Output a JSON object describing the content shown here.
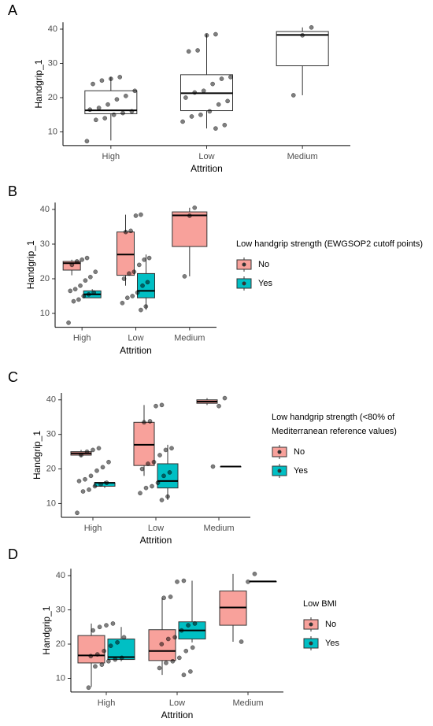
{
  "chart_data": [
    {
      "type": "box",
      "label": "A",
      "x_label": "Attrition",
      "y_label": "Handgrip_1",
      "categories": [
        "High",
        "Low",
        "Medium"
      ],
      "ylim": [
        6,
        42
      ],
      "yticks": [
        10,
        20,
        30,
        40
      ],
      "series": [
        {
          "color": "#ffffff",
          "boxes": [
            [
              7.5,
              15.3,
              16.3,
              22,
              26
            ],
            [
              11,
              16.2,
              21.3,
              26.7,
              38.5
            ],
            [
              20.7,
              29.3,
              38.3,
              39.3,
              40.5
            ]
          ]
        }
      ],
      "points": [
        [
          7.3,
          13.5,
          14,
          15,
          15.5,
          16,
          16.5,
          17,
          18,
          19.5,
          20.5,
          22,
          24,
          25,
          25.5,
          26
        ],
        [
          11,
          12,
          13,
          14.5,
          15,
          16,
          18,
          19,
          20,
          21.5,
          22,
          24,
          25.5,
          26,
          33.5,
          33.8,
          38.2,
          38.5
        ],
        [
          20.7,
          38.2,
          40.5
        ]
      ]
    },
    {
      "type": "box",
      "label": "B",
      "x_label": "Attrition",
      "y_label": "Handgrip_1",
      "categories": [
        "High",
        "Low",
        "Medium"
      ],
      "ylim": [
        6,
        42
      ],
      "yticks": [
        10,
        20,
        30,
        40
      ],
      "legend_title": [
        "Low handgrip strength (EWGSOP2 cutoff points)"
      ],
      "series": [
        {
          "name": "No",
          "color": "#f8a19b",
          "boxes": [
            [
              21,
              22.5,
              24.5,
              25,
              25.5
            ],
            [
              18,
              21,
              27,
              33.5,
              38.5
            ],
            [
              20.7,
              29.3,
              38.3,
              39.3,
              40.5
            ]
          ]
        },
        {
          "name": "Yes",
          "color": "#00bfc4",
          "boxes": [
            [
              14.5,
              14.5,
              15.5,
              16.5,
              17
            ],
            [
              11,
              14.5,
              16.5,
              21.5,
              27
            ],
            null
          ]
        }
      ],
      "points": [
        [
          7.3,
          13.5,
          14,
          15,
          15.5,
          16,
          16.5,
          17,
          18,
          19.5,
          20.5,
          22,
          24,
          25,
          25.5,
          26
        ],
        [
          11,
          12,
          13,
          14.5,
          15,
          16,
          18,
          19,
          20,
          21.5,
          22,
          24,
          25.5,
          26,
          33.5,
          33.8,
          38.2,
          38.5
        ],
        [
          20.7,
          38.2,
          40.5
        ]
      ]
    },
    {
      "type": "box",
      "label": "C",
      "x_label": "Attrition",
      "y_label": "Handgrip_1",
      "categories": [
        "High",
        "Low",
        "Medium"
      ],
      "ylim": [
        6,
        42
      ],
      "yticks": [
        10,
        20,
        30,
        40
      ],
      "legend_title": [
        "Low handgrip strength (<80% of",
        "Mediterranean reference values)"
      ],
      "series": [
        {
          "name": "No",
          "color": "#f8a19b",
          "boxes": [
            [
              23.5,
              24,
              24.5,
              25,
              25.5
            ],
            [
              18,
              21,
              27,
              33.5,
              38.5
            ],
            [
              38.5,
              39,
              39.5,
              40,
              40.5
            ]
          ]
        },
        {
          "name": "Yes",
          "color": "#00bfc4",
          "boxes": [
            [
              14.5,
              15,
              16,
              16,
              16.5
            ],
            [
              11,
              14.5,
              16.5,
              21.5,
              27
            ],
            [
              20.7,
              20.7,
              20.7,
              20.7,
              20.7
            ]
          ]
        }
      ],
      "points": [
        [
          7.3,
          13.5,
          14,
          15,
          15.5,
          16,
          16.5,
          17,
          18,
          19.5,
          20.5,
          22,
          24,
          25,
          25.5,
          26
        ],
        [
          11,
          12,
          13,
          14.5,
          15,
          16,
          18,
          19,
          20,
          21.5,
          22,
          24,
          25.5,
          26,
          33.5,
          33.8,
          38.2,
          38.5
        ],
        [
          20.7,
          38.2,
          40.5
        ]
      ]
    },
    {
      "type": "box",
      "label": "D",
      "x_label": "Attrition",
      "y_label": "Handgrip_1",
      "categories": [
        "High",
        "Low",
        "Medium"
      ],
      "ylim": [
        6,
        42
      ],
      "yticks": [
        10,
        20,
        30,
        40
      ],
      "legend_title": [
        "Low BMI"
      ],
      "series": [
        {
          "name": "No",
          "color": "#f8a19b",
          "boxes": [
            [
              7.5,
              14.5,
              16.7,
              22.5,
              26
            ],
            [
              11,
              15.2,
              18,
              24.2,
              33.5
            ],
            [
              20.7,
              25.5,
              30.7,
              35.5,
              40.5
            ]
          ]
        },
        {
          "name": "Yes",
          "color": "#00bfc4",
          "boxes": [
            [
              15,
              15.5,
              16.2,
              21.5,
              25
            ],
            [
              20.5,
              21.5,
              24,
              26.5,
              38.5
            ],
            [
              38.3,
              38.3,
              38.3,
              38.3,
              38.3
            ]
          ]
        }
      ],
      "points": [
        [
          7.3,
          13.5,
          14,
          15,
          15.5,
          16,
          16.5,
          17,
          18,
          19.5,
          20.5,
          22,
          24,
          25,
          25.5,
          26
        ],
        [
          11,
          12,
          13,
          14.5,
          15,
          16,
          18,
          19,
          20,
          21.5,
          22,
          24,
          25.5,
          26,
          33.5,
          33.8,
          38.2,
          38.5
        ],
        [
          20.7,
          38.2,
          40.5
        ]
      ]
    }
  ]
}
